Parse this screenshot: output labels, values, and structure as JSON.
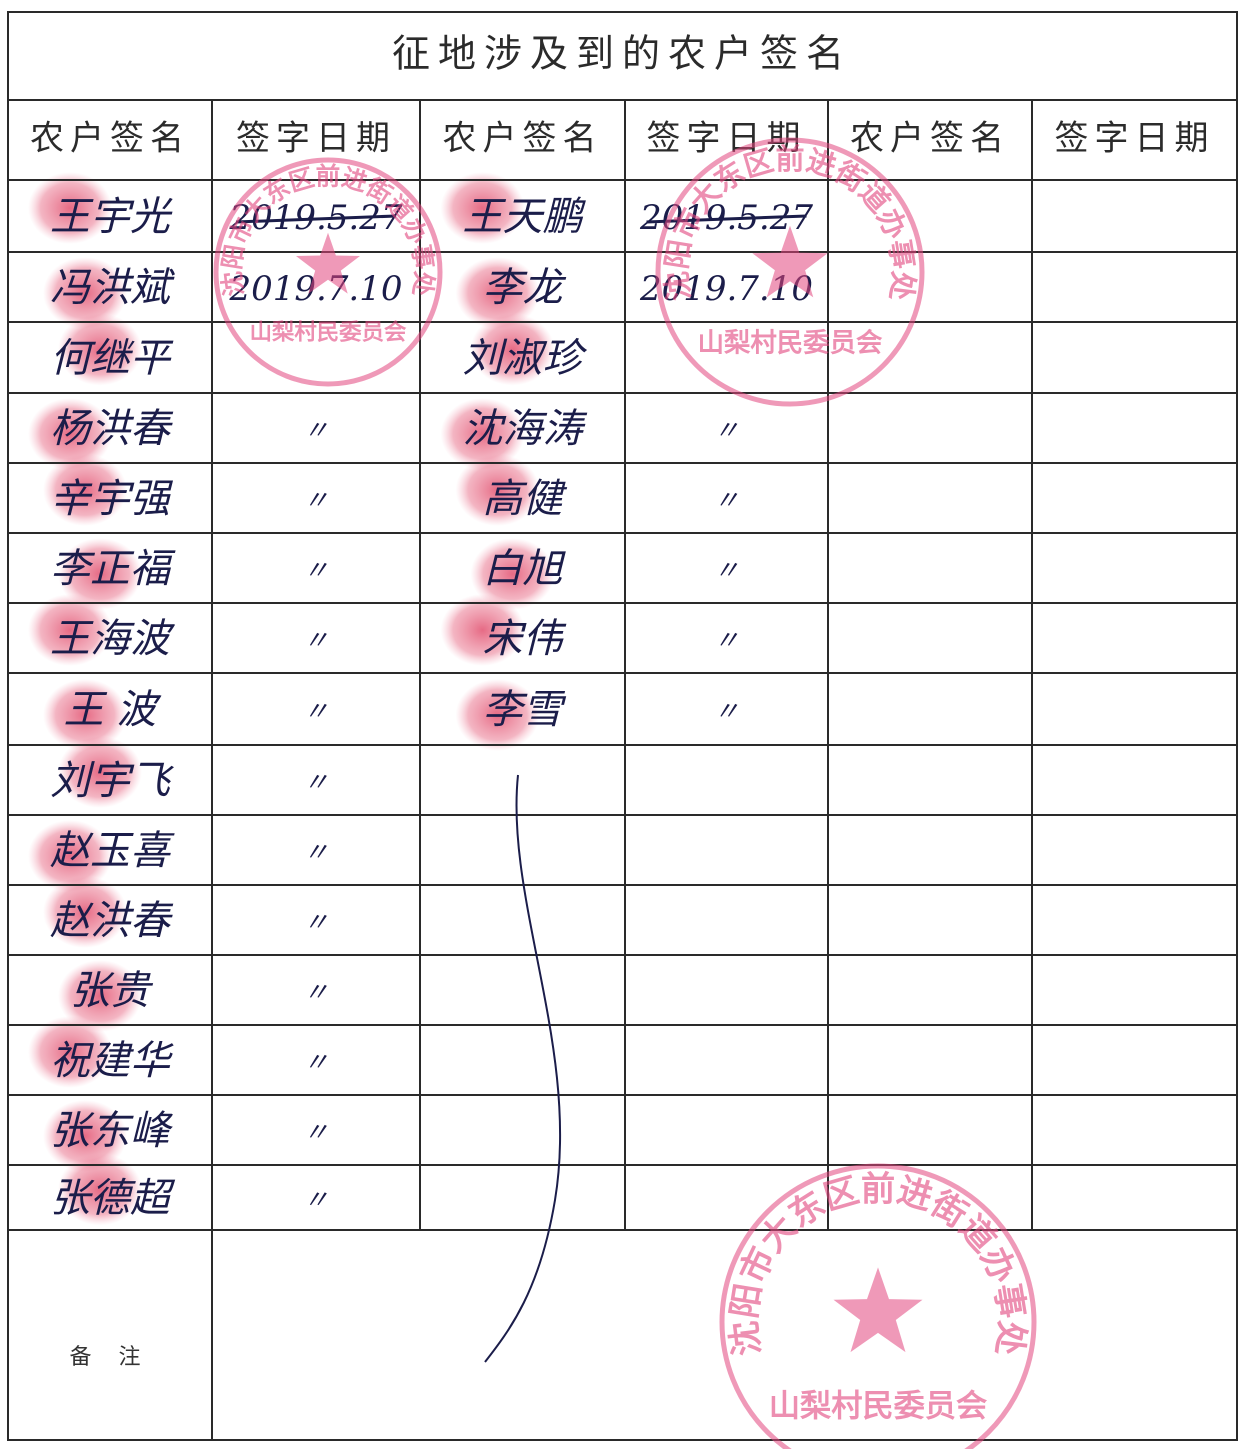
{
  "title": "征地涉及到的农户签名",
  "header": [
    "农户签名",
    "签字日期",
    "农户签名",
    "签字日期",
    "农户签名",
    "签字日期"
  ],
  "rows": [
    {
      "name1": "王宇光",
      "date1": "2019.5.27",
      "name2": "王天鹏",
      "date2": "2019.5.27",
      "struck": true
    },
    {
      "name1": "冯洪斌",
      "date1": "2019.7.10",
      "name2": "李龙",
      "date2": "2019.7.10"
    },
    {
      "name1": "何继平",
      "name2": "刘淑珍"
    },
    {
      "name1": "杨洪春",
      "date1": "〃",
      "name2": "沈海涛",
      "date2": "〃"
    },
    {
      "name1": "辛宇强",
      "date1": "〃",
      "name2": "高健",
      "date2": "〃"
    },
    {
      "name1": "李正福",
      "date1": "〃",
      "name2": "白旭",
      "date2": "〃"
    },
    {
      "name1": "王海波",
      "date1": "〃",
      "name2": "宋伟",
      "date2": "〃"
    },
    {
      "name1": "王 波",
      "date1": "〃",
      "name2": "李雪",
      "date2": "〃"
    },
    {
      "name1": "刘宇飞",
      "date1": "〃"
    },
    {
      "name1": "赵玉喜",
      "date1": "〃"
    },
    {
      "name1": "赵洪春",
      "date1": "〃"
    },
    {
      "name1": "张贵",
      "date1": "〃"
    },
    {
      "name1": "祝建华",
      "date1": "〃"
    },
    {
      "name1": "张东峰",
      "date1": "〃"
    },
    {
      "name1": "张德超",
      "date1": "〃"
    }
  ],
  "remarks_label": "备 注",
  "stamps": [
    {
      "outer": "沈阳市大东区前进街道办事处",
      "inner": "山梨村民委员会"
    },
    {
      "outer": "沈阳市大东区前进街道办事处",
      "inner": "山梨村民委员会"
    },
    {
      "outer": "沈阳市大东区前进街道办事处",
      "inner": "山梨村民委员会"
    }
  ]
}
